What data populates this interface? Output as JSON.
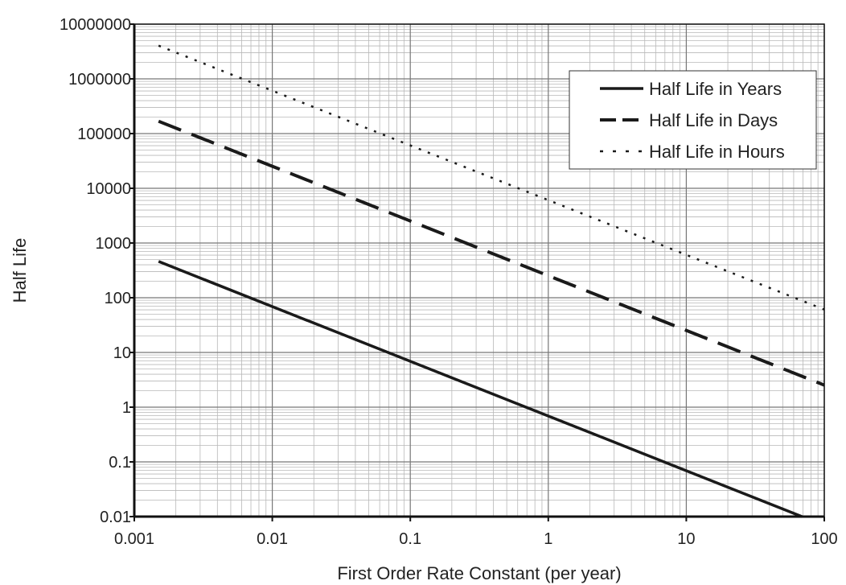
{
  "chart_data": {
    "type": "line",
    "title": "",
    "xlabel": "First Order Rate Constant (per year)",
    "ylabel": "Half Life",
    "x_scale": "log",
    "y_scale": "log",
    "xlim": [
      0.001,
      100
    ],
    "ylim": [
      0.01,
      10000000
    ],
    "x_ticks": [
      "0.001",
      "0.01",
      "0.1",
      "1",
      "10",
      "100"
    ],
    "y_ticks": [
      "0.01",
      "0.1",
      "1",
      "10",
      "100",
      "1000",
      "10000",
      "100000",
      "1000000",
      "10000000"
    ],
    "grid": true,
    "legend_position": "top-right",
    "series": [
      {
        "name": "Half Life in Years",
        "style": "solid",
        "x": [
          0.0015,
          0.01,
          0.1,
          1,
          10,
          69
        ],
        "y": [
          460,
          69,
          6.9,
          0.69,
          0.069,
          0.01
        ]
      },
      {
        "name": "Half Life in Days",
        "style": "dashed",
        "x": [
          0.0015,
          0.01,
          0.1,
          1,
          10,
          100
        ],
        "y": [
          168000,
          25300,
          2530,
          253,
          25.3,
          2.53
        ]
      },
      {
        "name": "Half Life in Hours",
        "style": "dotted",
        "x": [
          0.0015,
          0.01,
          0.1,
          1,
          10,
          100
        ],
        "y": [
          4050000,
          607000,
          60700,
          6070,
          607,
          60.7
        ]
      }
    ]
  }
}
